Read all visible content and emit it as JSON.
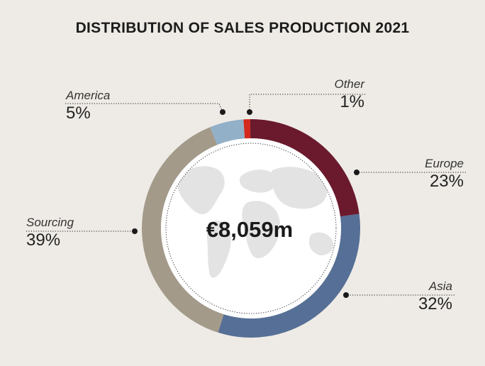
{
  "chart_data": {
    "type": "pie",
    "title": "DISTRIBUTION OF SALES PRODUCTION 2021",
    "center_label": "€8,059m",
    "slices": [
      {
        "label": "Other",
        "value": 1,
        "display": "1%",
        "color": "#d42a1e"
      },
      {
        "label": "Europe",
        "value": 23,
        "display": "23%",
        "color": "#6b1a2e"
      },
      {
        "label": "Asia",
        "value": 32,
        "display": "32%",
        "color": "#566f96"
      },
      {
        "label": "Sourcing",
        "value": 39,
        "display": "39%",
        "color": "#a39a8a"
      },
      {
        "label": "America",
        "value": 5,
        "display": "5%",
        "color": "#92b0c8"
      }
    ]
  }
}
